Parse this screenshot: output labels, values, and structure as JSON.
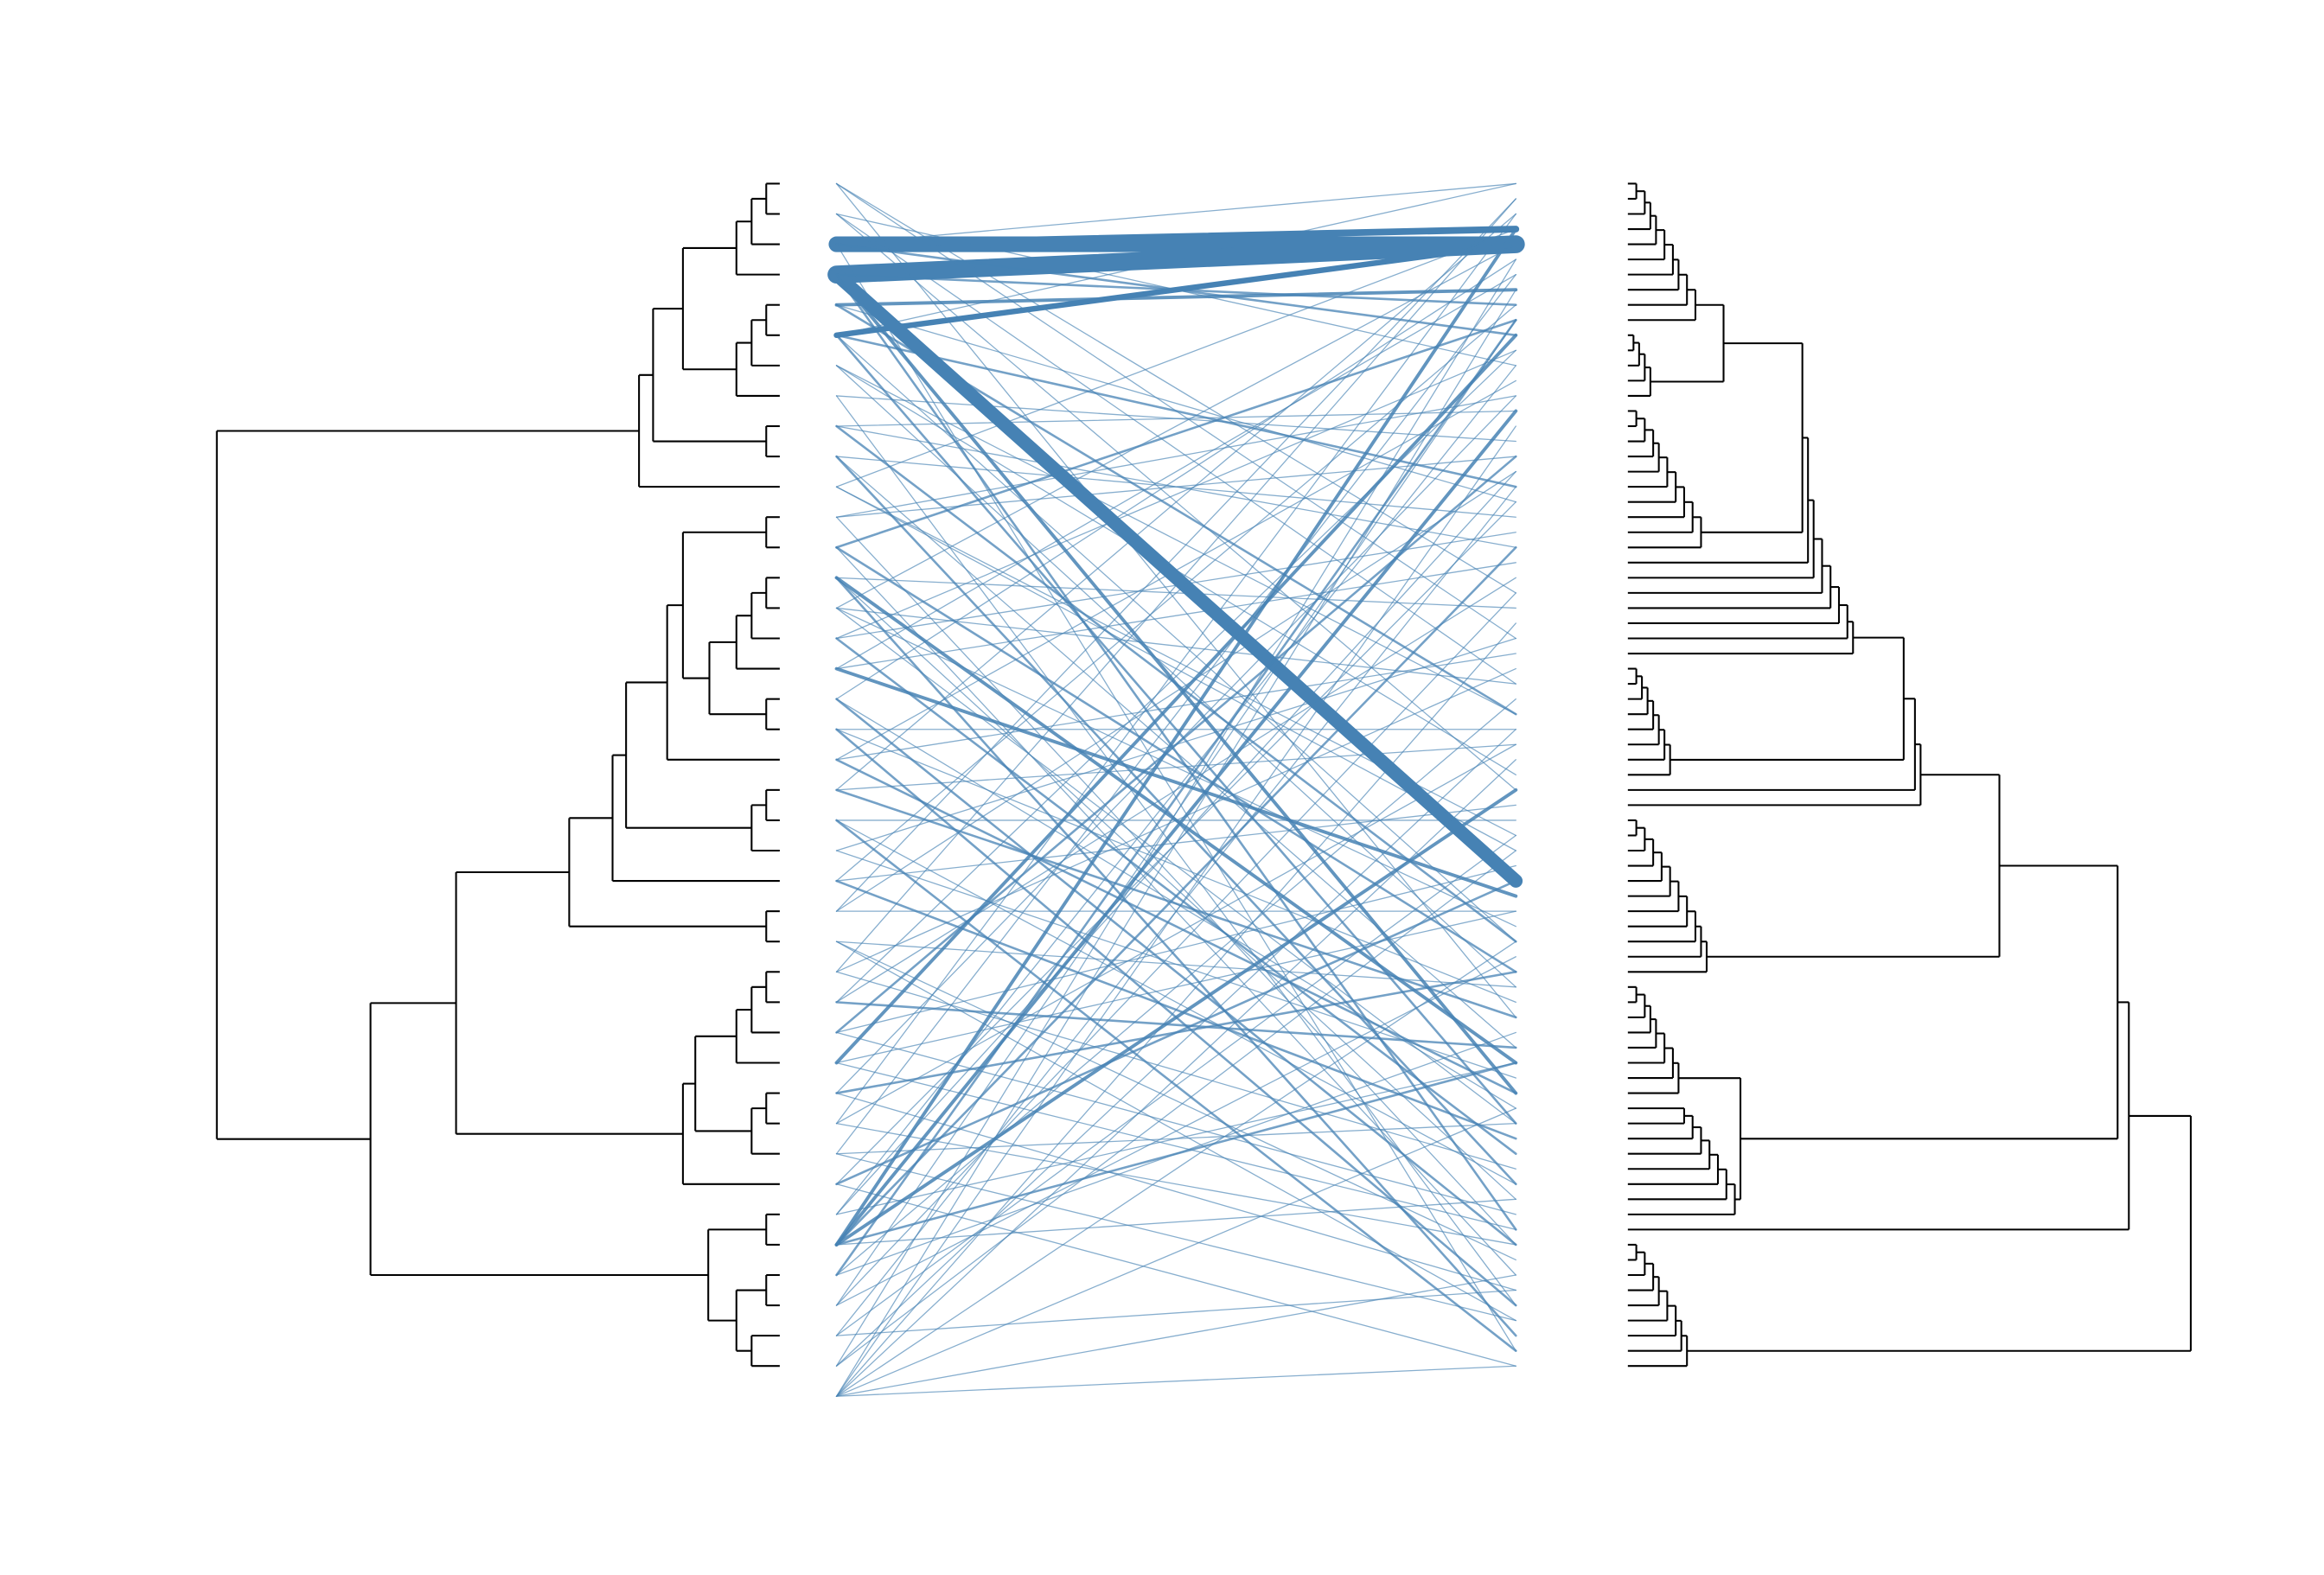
{
  "chart_data": {
    "type": "tanglegram",
    "color": "#4682b4",
    "tree_color": "#000000",
    "left_tree": [
      10,
      [
        2.5,
        [
          2.25,
          [
            1.72,
            [
              0.77,
              [
                0.5,
                [
                  0.24,
                  0,
                  0
                ],
                0
              ],
              0
            ],
            [
              0.77,
              [
                0.5,
                [
                  0.24,
                  0,
                  0
                ],
                0
              ],
              0
            ]
          ],
          [
            0.24,
            0,
            0
          ]
        ],
        0
      ],
      [
        7.27,
        [
          5.75,
          [
            3.74,
            [
              2.97,
              [
                2.73,
                [
                  2.0,
                  [
                    1.72,
                    [
                      0.24,
                      0,
                      0
                    ],
                    [
                      1.25,
                      [
                        0.77,
                        [
                          0.5,
                          [
                            0.24,
                            0,
                            0
                          ],
                          0
                        ],
                        0
                      ],
                      [
                        0.24,
                        0,
                        0
                      ]
                    ]
                  ],
                  0
                ],
                [
                  0.5,
                  [
                    0.24,
                    0,
                    0
                  ],
                  0
                ]
              ],
              0
            ],
            [
              0.24,
              0,
              0
            ]
          ],
          [
            1.72,
            [
              1.5,
              [
                0.77,
                [
                  0.5,
                  [
                    0.24,
                    0,
                    0
                  ],
                  0
                ],
                0
              ],
              [
                0.5,
                [
                  0.24,
                  0,
                  0
                ],
                0
              ]
            ],
            0
          ]
        ],
        [
          1.27,
          [
            0.24,
            0,
            0
          ],
          [
            0.77,
            [
              0.24,
              0,
              0
            ],
            [
              0.5,
              0,
              0
            ]
          ]
        ]
      ]
    ],
    "right_tree": [
      10,
      [
        8.9,
        [
          8.7,
          [
            6.6,
            [
              5.2,
              [
                5.1,
                [
                  4.9,
                  [
                    4.0,
                    [
                      3.9,
                      [
                        3.75,
                        [
                          3.6,
                          [
                            3.45,
                            [
                              3.3,
                              [
                                3.2,
                                [
                                  3.1,
                                  [
                                    1.7,
                                    [
                                      1.2,
                                      [
                                        1.05,
                                        [
                                          0.9,
                                          [
                                            0.8,
                                            [
                                              0.65,
                                              [
                                                0.5,
                                                [
                                                  0.4,
                                                  [
                                                    0.3,
                                                    [
                                                      0.15,
                                                      0,
                                                      0
                                                    ],
                                                    0
                                                  ],
                                                  0
                                                ],
                                                0
                                              ],
                                              0
                                            ],
                                            0
                                          ],
                                          0
                                        ],
                                        0
                                      ],
                                      0
                                    ],
                                    [
                                      0.4,
                                      [
                                        0.3,
                                        [
                                          0.2,
                                          [
                                            0.1,
                                            0,
                                            0
                                          ],
                                          0
                                        ],
                                        0
                                      ],
                                      0
                                    ]
                                  ],
                                  [
                                    1.3,
                                    [
                                      1.15,
                                      [
                                        1.0,
                                        [
                                          0.85,
                                          [
                                            0.7,
                                            [
                                              0.55,
                                              [
                                                0.45,
                                                [
                                                  0.3,
                                                  [
                                                    0.15,
                                                    0,
                                                    0
                                                  ],
                                                  0
                                                ],
                                                0
                                              ],
                                              0
                                            ],
                                            0
                                          ],
                                          0
                                        ],
                                        0
                                      ],
                                      0
                                    ],
                                    0
                                  ]
                                ],
                                0
                              ],
                              0
                            ],
                            0
                          ],
                          0
                        ],
                        0
                      ],
                      0
                    ],
                    0
                  ],
                  [
                    0.75,
                    [
                      0.65,
                      [
                        0.55,
                        [
                          0.45,
                          [
                            0.35,
                            [
                              0.25,
                              [
                                0.15,
                                0,
                                0
                              ],
                              0
                            ],
                            0
                          ],
                          0
                        ],
                        0
                      ],
                      0
                    ],
                    0
                  ]
                ],
                0
              ],
              0
            ],
            [
              1.4,
              [
                1.3,
                [
                  1.2,
                  [
                    1.05,
                    [
                      0.9,
                      [
                        0.75,
                        [
                          0.6,
                          [
                            0.45,
                            [
                              0.3,
                              [
                                0.15,
                                0,
                                0
                              ],
                              0
                            ],
                            0
                          ],
                          0
                        ],
                        0
                      ],
                      0
                    ],
                    0
                  ],
                  0
                ],
                0
              ],
              0
            ]
          ],
          [
            2.0,
            [
              0.9,
              [
                0.8,
                [
                  0.65,
                  [
                    0.5,
                    [
                      0.4,
                      [
                        0.3,
                        [
                          0.15,
                          0,
                          0
                        ],
                        0
                      ],
                      0
                    ],
                    0
                  ],
                  0
                ],
                0
              ],
              0
            ],
            [
              1.9,
              [
                1.75,
                [
                  1.6,
                  [
                    1.45,
                    [
                      1.3,
                      [
                        1.15,
                        [
                          1.0,
                          0,
                          0
                        ],
                        0
                      ],
                      0
                    ],
                    0
                  ],
                  0
                ],
                0
              ],
              0
            ]
          ]
        ],
        0
      ],
      [
        1.05,
        [
          0.95,
          [
            0.85,
            [
              0.7,
              [
                0.55,
                [
                  0.45,
                  [
                    0.3,
                    [
                      0.15,
                      0,
                      0
                    ],
                    0
                  ],
                  0
                ],
                0
              ],
              0
            ],
            0
          ],
          0
        ],
        0
      ]
    ],
    "links": [
      [
        2,
        4,
        14
      ],
      [
        3,
        4,
        16
      ],
      [
        3,
        46,
        12
      ],
      [
        2,
        3,
        6
      ],
      [
        5,
        4,
        5
      ],
      [
        4,
        7,
        3
      ],
      [
        3,
        8,
        2
      ],
      [
        2,
        0,
        1
      ],
      [
        2,
        10,
        2
      ],
      [
        3,
        60,
        3
      ],
      [
        0,
        30,
        1
      ],
      [
        0,
        55,
        1
      ],
      [
        1,
        12,
        1
      ],
      [
        1,
        40,
        1
      ],
      [
        5,
        20,
        2
      ],
      [
        5,
        62,
        2
      ],
      [
        5,
        0,
        1
      ],
      [
        6,
        35,
        1
      ],
      [
        7,
        74,
        1
      ],
      [
        8,
        15,
        1
      ],
      [
        8,
        50,
        2
      ],
      [
        9,
        66,
        2
      ],
      [
        9,
        22,
        1
      ],
      [
        10,
        3,
        1
      ],
      [
        10,
        44,
        1
      ],
      [
        11,
        70,
        1
      ],
      [
        11,
        18,
        1
      ],
      [
        12,
        9,
        2
      ],
      [
        12,
        52,
        2
      ],
      [
        13,
        58,
        3
      ],
      [
        13,
        28,
        1
      ],
      [
        13,
        76,
        2
      ],
      [
        14,
        4,
        1
      ],
      [
        14,
        33,
        1
      ],
      [
        15,
        64,
        2
      ],
      [
        15,
        11,
        1
      ],
      [
        16,
        47,
        3
      ],
      [
        16,
        25,
        1
      ],
      [
        17,
        70,
        2
      ],
      [
        17,
        5,
        1
      ],
      [
        18,
        36,
        1
      ],
      [
        19,
        60,
        2
      ],
      [
        19,
        13,
        1
      ],
      [
        20,
        55,
        2
      ],
      [
        20,
        2,
        1
      ],
      [
        21,
        42,
        1
      ],
      [
        21,
        77,
        2
      ],
      [
        22,
        30,
        1
      ],
      [
        23,
        8,
        1
      ],
      [
        23,
        63,
        2
      ],
      [
        24,
        48,
        1
      ],
      [
        24,
        19,
        1
      ],
      [
        25,
        71,
        1
      ],
      [
        26,
        1,
        1
      ],
      [
        27,
        57,
        2
      ],
      [
        27,
        26,
        1
      ],
      [
        28,
        45,
        1
      ],
      [
        29,
        10,
        3
      ],
      [
        29,
        69,
        1
      ],
      [
        30,
        14,
        1
      ],
      [
        30,
        52,
        2
      ],
      [
        31,
        37,
        1
      ],
      [
        32,
        6,
        1
      ],
      [
        32,
        75,
        1
      ],
      [
        33,
        46,
        2
      ],
      [
        34,
        12,
        1
      ],
      [
        35,
        3,
        3
      ],
      [
        35,
        15,
        3
      ],
      [
        35,
        24,
        2
      ],
      [
        35,
        40,
        3
      ],
      [
        35,
        58,
        2
      ],
      [
        35,
        67,
        1
      ],
      [
        36,
        9,
        2
      ],
      [
        36,
        34,
        1
      ],
      [
        37,
        51,
        1
      ],
      [
        38,
        20,
        1
      ],
      [
        38,
        73,
        1
      ],
      [
        39,
        5,
        1
      ],
      [
        39,
        44,
        1
      ],
      [
        40,
        7,
        1
      ],
      [
        40,
        16,
        1
      ],
      [
        40,
        29,
        1
      ],
      [
        40,
        38,
        1
      ],
      [
        40,
        50,
        1
      ],
      [
        40,
        61,
        1
      ],
      [
        40,
        72,
        1
      ],
      [
        40,
        78,
        1
      ],
      [
        33,
        78,
        1
      ],
      [
        31,
        70,
        1
      ],
      [
        28,
        68,
        1
      ],
      [
        26,
        65,
        1
      ],
      [
        22,
        59,
        1
      ],
      [
        18,
        54,
        1
      ],
      [
        14,
        49,
        1
      ],
      [
        10,
        43,
        1
      ],
      [
        6,
        39,
        1
      ],
      [
        1,
        33,
        1
      ],
      [
        0,
        27,
        1
      ],
      [
        4,
        21,
        1
      ],
      [
        7,
        17,
        1
      ],
      [
        11,
        14,
        1
      ],
      [
        15,
        23,
        1
      ],
      [
        19,
        31,
        1
      ],
      [
        23,
        41,
        1
      ],
      [
        27,
        11,
        1
      ],
      [
        31,
        2,
        1
      ],
      [
        34,
        19,
        1
      ],
      [
        37,
        27,
        1
      ],
      [
        39,
        36,
        1
      ],
      [
        36,
        56,
        1
      ],
      [
        32,
        62,
        1
      ],
      [
        25,
        75,
        1
      ],
      [
        21,
        66,
        1
      ],
      [
        17,
        61,
        1
      ],
      [
        12,
        72,
        1
      ],
      [
        9,
        57,
        1
      ],
      [
        6,
        53,
        1
      ],
      [
        3,
        69,
        2
      ],
      [
        2,
        77,
        1
      ],
      [
        4,
        35,
        2
      ],
      [
        5,
        50,
        1
      ],
      [
        34,
        58,
        1
      ],
      [
        38,
        43,
        1
      ],
      [
        24,
        1,
        1
      ],
      [
        20,
        37,
        1
      ],
      [
        16,
        6,
        1
      ],
      [
        8,
        24,
        1
      ],
      [
        29,
        48,
        1
      ],
      [
        30,
        73,
        1
      ],
      [
        26,
        32,
        1
      ],
      [
        37,
        9,
        1
      ],
      [
        33,
        21,
        1
      ],
      [
        28,
        18,
        2
      ],
      [
        25,
        53,
        1
      ],
      [
        18,
        74,
        2
      ],
      [
        13,
        67,
        1
      ],
      [
        14,
        62,
        1
      ]
    ]
  }
}
